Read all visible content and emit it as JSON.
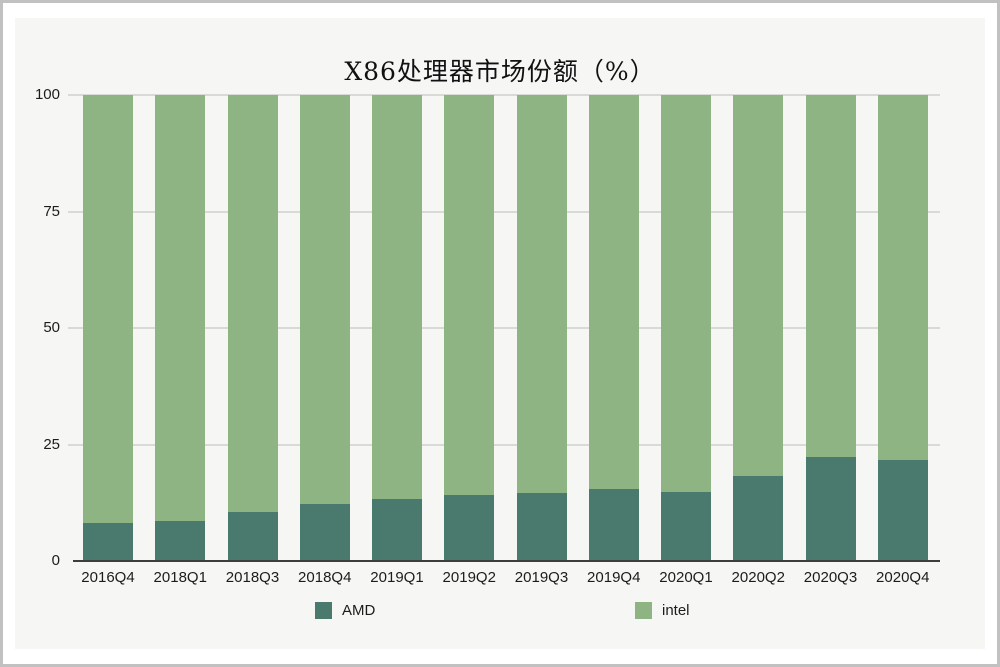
{
  "chart_data": {
    "type": "bar",
    "variant": "stacked-100-percent",
    "title": "X86处理器市场份额（%）",
    "categories": [
      "2016Q4",
      "2018Q1",
      "2018Q3",
      "2018Q4",
      "2019Q1",
      "2019Q2",
      "2019Q3",
      "2019Q4",
      "2020Q1",
      "2020Q2",
      "2020Q3",
      "2020Q4"
    ],
    "series": [
      {
        "name": "AMD",
        "color": "#4a7a6d",
        "values": [
          8.1,
          8.6,
          10.6,
          12.3,
          13.3,
          14.1,
          14.6,
          15.5,
          14.8,
          18.3,
          22.4,
          21.7
        ]
      },
      {
        "name": "intel",
        "color": "#8fb483",
        "values": [
          91.9,
          91.4,
          89.4,
          87.7,
          86.7,
          85.9,
          85.4,
          84.5,
          85.2,
          81.7,
          77.6,
          78.3
        ]
      }
    ],
    "ylim": [
      0,
      100
    ],
    "yticks": [
      0,
      25,
      50,
      75,
      100
    ],
    "grid": "horizontal",
    "legend_position": "bottom"
  },
  "colors": {
    "panel_bg": "#f6f7f4",
    "frame_border": "#c1c1c1",
    "gridline": "#d8dad6",
    "axis_line": "#3d3d3d",
    "text": "#1c1c1c"
  }
}
